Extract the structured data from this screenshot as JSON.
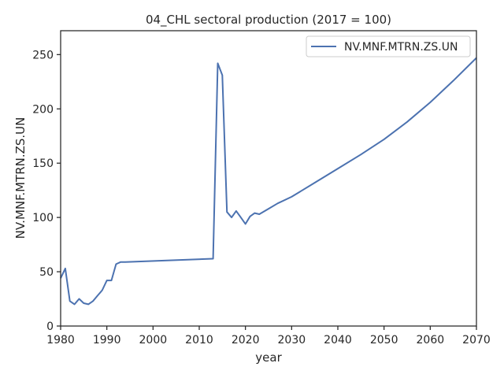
{
  "chart_data": {
    "type": "line",
    "title": "04_CHL sectoral production (2017 = 100)",
    "xlabel": "year",
    "ylabel": "NV.MNF.MTRN.ZS.UN",
    "xlim": [
      1980,
      2070
    ],
    "ylim": [
      0,
      272
    ],
    "xticks": [
      1980,
      1990,
      2000,
      2010,
      2020,
      2030,
      2040,
      2050,
      2060,
      2070
    ],
    "yticks": [
      0,
      50,
      100,
      150,
      200,
      250
    ],
    "grid": false,
    "legend_position": "top-right",
    "series": [
      {
        "name": "NV.MNF.MTRN.ZS.UN",
        "color": "#4c72b0",
        "x": [
          1980,
          1981,
          1982,
          1983,
          1984,
          1985,
          1986,
          1987,
          1988,
          1989,
          1990,
          1991,
          1992,
          1993,
          1994,
          2013,
          2014,
          2015,
          2016,
          2017,
          2018,
          2019,
          2020,
          2021,
          2022,
          2023,
          2025,
          2027,
          2030,
          2035,
          2040,
          2045,
          2050,
          2055,
          2060,
          2065,
          2070
        ],
        "y": [
          44,
          53,
          23,
          20,
          25,
          21,
          20,
          23,
          28,
          33,
          42,
          42,
          57,
          59,
          59,
          62,
          242,
          231,
          105,
          100,
          106,
          100,
          94,
          101,
          104,
          103,
          108,
          113,
          119,
          132,
          145,
          158,
          172,
          188,
          206,
          226,
          247
        ]
      }
    ]
  }
}
